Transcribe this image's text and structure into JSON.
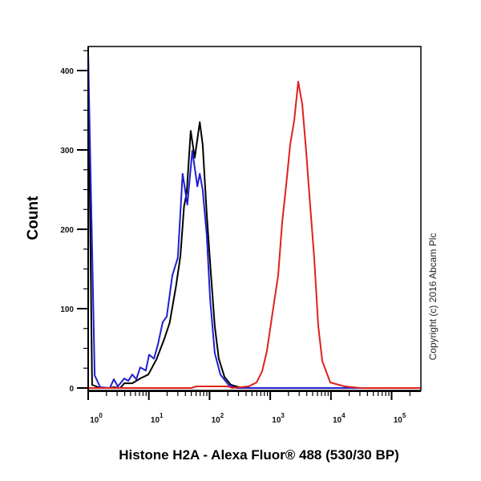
{
  "chart_data": {
    "type": "line",
    "xlabel": "Histone H2A  - Alexa Fluor® 488 (530/30 BP)",
    "ylabel": "Count",
    "xscale": "log",
    "xlim": [
      1,
      300000
    ],
    "ylim": [
      0,
      430
    ],
    "x_ticks": [
      {
        "base": "10",
        "exp": "0",
        "value": 1
      },
      {
        "base": "10",
        "exp": "1",
        "value": 10
      },
      {
        "base": "10",
        "exp": "2",
        "value": 100
      },
      {
        "base": "10",
        "exp": "3",
        "value": 1000
      },
      {
        "base": "10",
        "exp": "4",
        "value": 10000
      },
      {
        "base": "10",
        "exp": "5",
        "value": 100000
      }
    ],
    "y_ticks": [
      "0",
      "100",
      "200",
      "300",
      "400"
    ],
    "y_tick_values": [
      0,
      100,
      200,
      300,
      400
    ],
    "grid": false,
    "annotation": "Copyright (c) 2016 Abcam Plc",
    "series": [
      {
        "color": "#000000",
        "points": [
          [
            1,
            420
          ],
          [
            1.16,
            4
          ],
          [
            1.58,
            0
          ],
          [
            2.27,
            0
          ],
          [
            2.65,
            1
          ],
          [
            3.38,
            0
          ],
          [
            3.93,
            6
          ],
          [
            5.33,
            6
          ],
          [
            7.2,
            12
          ],
          [
            9.8,
            17
          ],
          [
            13.3,
            36
          ],
          [
            18,
            62
          ],
          [
            22,
            82
          ],
          [
            28,
            128
          ],
          [
            33,
            166
          ],
          [
            38,
            229
          ],
          [
            42,
            246
          ],
          [
            49,
            324
          ],
          [
            57,
            290
          ],
          [
            69,
            335
          ],
          [
            77,
            307
          ],
          [
            90,
            219
          ],
          [
            105,
            145
          ],
          [
            122,
            78
          ],
          [
            142,
            37
          ],
          [
            176,
            14
          ],
          [
            224,
            4
          ],
          [
            304,
            1
          ],
          [
            500,
            0
          ],
          [
            300000,
            0
          ]
        ]
      },
      {
        "color": "#1f1fd0",
        "points": [
          [
            1,
            420
          ],
          [
            1.28,
            16
          ],
          [
            1.58,
            1
          ],
          [
            2.27,
            0
          ],
          [
            2.65,
            11
          ],
          [
            3.08,
            2
          ],
          [
            3.93,
            12
          ],
          [
            4.57,
            9
          ],
          [
            5.33,
            17
          ],
          [
            6.2,
            11
          ],
          [
            7.2,
            26
          ],
          [
            8.9,
            22
          ],
          [
            10.1,
            42
          ],
          [
            12.1,
            37
          ],
          [
            14.1,
            55
          ],
          [
            16.9,
            83
          ],
          [
            19.7,
            90
          ],
          [
            24.4,
            142
          ],
          [
            30,
            164
          ],
          [
            36,
            270
          ],
          [
            43,
            231
          ],
          [
            52,
            299
          ],
          [
            63,
            254
          ],
          [
            69,
            270
          ],
          [
            77,
            250
          ],
          [
            90,
            193
          ],
          [
            102,
            112
          ],
          [
            122,
            44
          ],
          [
            151,
            17
          ],
          [
            205,
            4
          ],
          [
            278,
            0
          ],
          [
            300000,
            0
          ]
        ]
      },
      {
        "color": "#e0201c",
        "points": [
          [
            1,
            0
          ],
          [
            50,
            0
          ],
          [
            60,
            2
          ],
          [
            200,
            2
          ],
          [
            239,
            0
          ],
          [
            439,
            2
          ],
          [
            594,
            7
          ],
          [
            735,
            21
          ],
          [
            883,
            47
          ],
          [
            1092,
            95
          ],
          [
            1352,
            142
          ],
          [
            1574,
            209
          ],
          [
            1832,
            256
          ],
          [
            2133,
            307
          ],
          [
            2483,
            337
          ],
          [
            2891,
            386
          ],
          [
            3365,
            358
          ],
          [
            3917,
            297
          ],
          [
            4561,
            229
          ],
          [
            5310,
            163
          ],
          [
            6181,
            78
          ],
          [
            7196,
            34
          ],
          [
            9752,
            7
          ],
          [
            16870,
            2
          ],
          [
            31000,
            0
          ],
          [
            300000,
            0
          ]
        ]
      }
    ]
  }
}
